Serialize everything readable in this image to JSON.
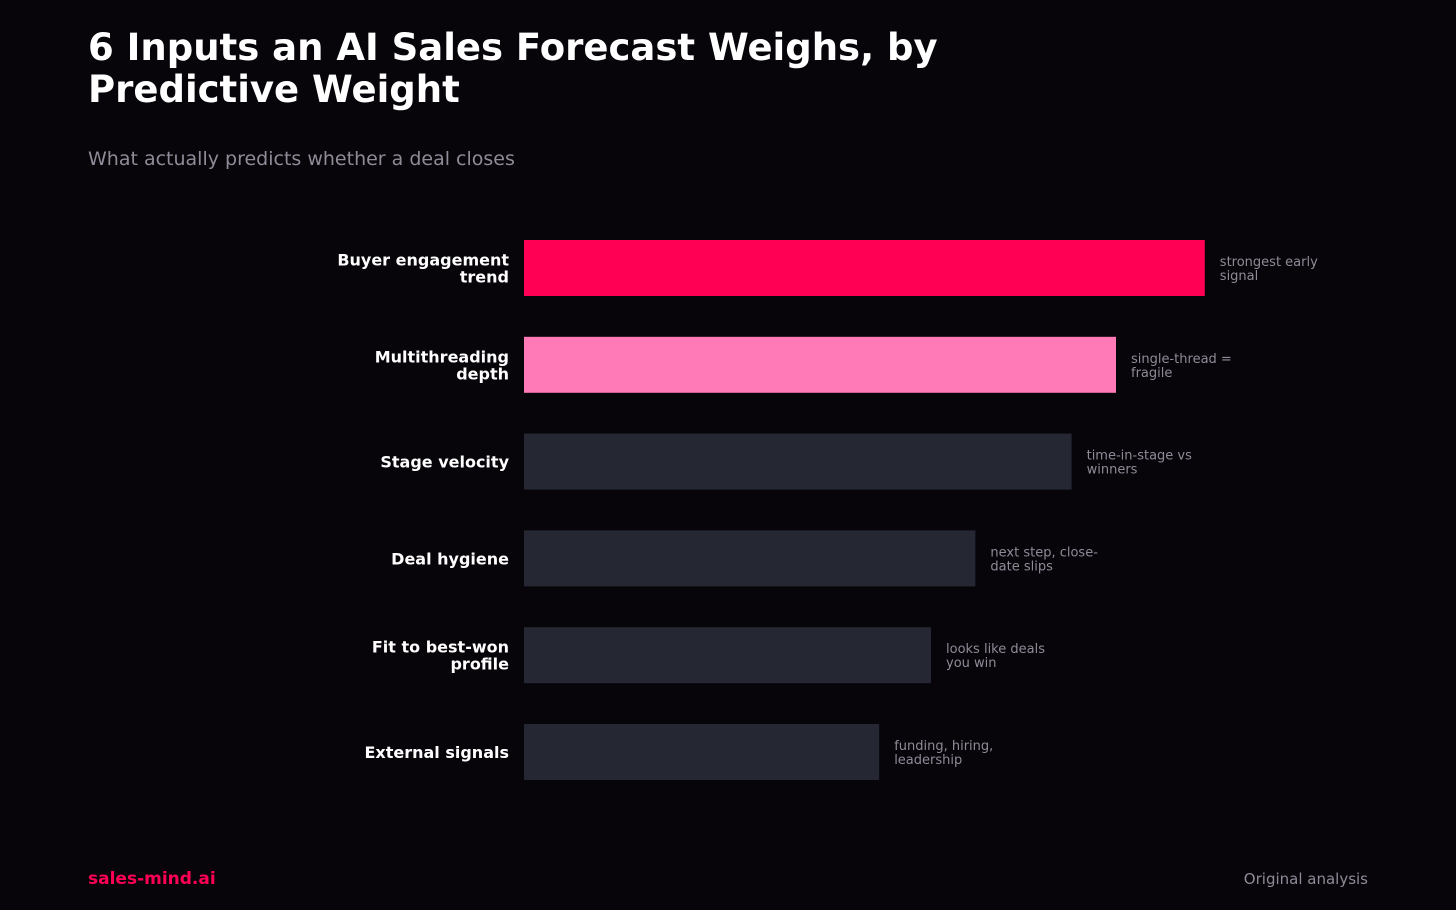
{
  "header": {
    "title": "6 Inputs an AI Sales Forecast Weighs, by Predictive Weight",
    "subtitle": "What actually predicts whether a deal closes"
  },
  "footer": {
    "brand": "sales-mind.ai",
    "source": "Original analysis"
  },
  "colors": {
    "background": "#07040a",
    "highlight_primary": "#ff0055",
    "highlight_secondary": "#ff7ab6",
    "default_bar": "#252832",
    "label_text": "#ffffff",
    "note_text": "#8f8c98"
  },
  "chart_data": {
    "type": "bar",
    "orientation": "horizontal",
    "title": "6 Inputs an AI Sales Forecast Weighs, by Predictive Weight",
    "subtitle": "What actually predicts whether a deal closes",
    "xlabel": "",
    "ylabel": "",
    "xlim": [
      0,
      100
    ],
    "grid": false,
    "legend": "none",
    "categories": [
      [
        "Buyer engagement",
        "trend"
      ],
      [
        "Multithreading",
        "depth"
      ],
      [
        "Stage velocity"
      ],
      [
        "Deal hygiene"
      ],
      [
        "Fit to best-won",
        "profile"
      ],
      [
        "External signals"
      ]
    ],
    "values": [
      92,
      80,
      74,
      61,
      55,
      48
    ],
    "annotations": [
      [
        "strongest early",
        "signal"
      ],
      [
        "single-thread =",
        "fragile"
      ],
      [
        "time-in-stage vs",
        "winners"
      ],
      [
        "next step, close-",
        "date slips"
      ],
      [
        "looks like deals",
        "you win"
      ],
      [
        "funding, hiring,",
        "leadership"
      ]
    ],
    "bar_colors": [
      "#ff0055",
      "#ff7ab6",
      "#252832",
      "#252832",
      "#252832",
      "#252832"
    ]
  }
}
